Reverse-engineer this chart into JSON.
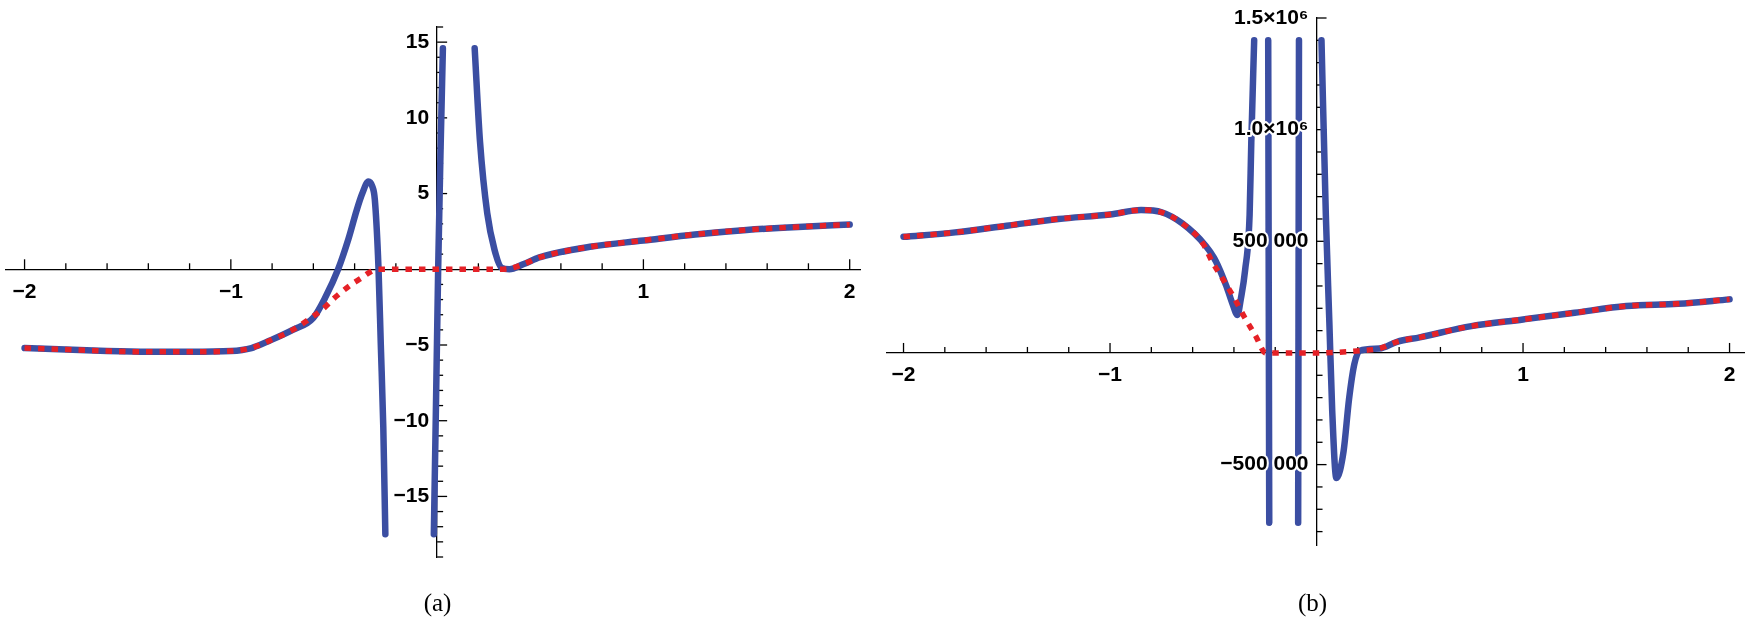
{
  "chart_data": [
    {
      "type": "line",
      "xlim": [
        -2.09,
        2.05
      ],
      "ylim": [
        -19,
        16
      ],
      "marker": "none",
      "xticks": [
        {
          "value": -2,
          "label": "−2"
        },
        {
          "value": -1.8,
          "label": null
        },
        {
          "value": -1.6,
          "label": null
        },
        {
          "value": -1.4,
          "label": null
        },
        {
          "value": -1.2,
          "label": null
        },
        {
          "value": -1,
          "label": "−1"
        },
        {
          "value": -0.8,
          "label": null
        },
        {
          "value": -0.6,
          "label": null
        },
        {
          "value": -0.4,
          "label": null
        },
        {
          "value": -0.2,
          "label": null
        },
        {
          "value": 0.2,
          "label": null
        },
        {
          "value": 0.4,
          "label": null
        },
        {
          "value": 0.6,
          "label": null
        },
        {
          "value": 0.8,
          "label": null
        },
        {
          "value": 1,
          "label": "1"
        },
        {
          "value": 1.2,
          "label": null
        },
        {
          "value": 1.4,
          "label": null
        },
        {
          "value": 1.6,
          "label": null
        },
        {
          "value": 1.8,
          "label": null
        },
        {
          "value": 2,
          "label": "2"
        }
      ],
      "yticks": [
        {
          "value": -19,
          "label": null
        },
        {
          "value": -18,
          "label": null
        },
        {
          "value": -17,
          "label": null
        },
        {
          "value": -16,
          "label": null
        },
        {
          "value": -15,
          "label": "−15"
        },
        {
          "value": -14,
          "label": null
        },
        {
          "value": -13,
          "label": null
        },
        {
          "value": -12,
          "label": null
        },
        {
          "value": -11,
          "label": null
        },
        {
          "value": -10,
          "label": "−10"
        },
        {
          "value": -9,
          "label": null
        },
        {
          "value": -8,
          "label": null
        },
        {
          "value": -7,
          "label": null
        },
        {
          "value": -6,
          "label": null
        },
        {
          "value": -5,
          "label": "−5"
        },
        {
          "value": -4,
          "label": null
        },
        {
          "value": -3,
          "label": null
        },
        {
          "value": -2,
          "label": null
        },
        {
          "value": -1,
          "label": null
        },
        {
          "value": 1,
          "label": null
        },
        {
          "value": 2,
          "label": null
        },
        {
          "value": 3,
          "label": null
        },
        {
          "value": 4,
          "label": null
        },
        5,
        {
          "value": 6,
          "label": null
        },
        {
          "value": 7,
          "label": null
        },
        {
          "value": 8,
          "label": null
        },
        {
          "value": 9,
          "label": null
        },
        10,
        {
          "value": 11,
          "label": null
        },
        {
          "value": 12,
          "label": null
        },
        {
          "value": 13,
          "label": null
        },
        {
          "value": 14,
          "label": null
        },
        15,
        {
          "value": 16,
          "label": null
        }
      ],
      "series": [
        {
          "color": "#3b4ea2",
          "line_style": "solid",
          "x": [
            -2,
            -1.8,
            -1.6,
            -1.4,
            -1.2,
            -1,
            -0.9,
            -0.81,
            -0.7,
            -0.6,
            -0.54,
            -0.48,
            -0.43,
            -0.39,
            -0.363,
            -0.333,
            -0.315,
            -0.302,
            -0.284,
            -0.273,
            -0.261,
            -0.251,
            -0.15,
            -0.016,
            -0.005,
            0.005,
            0.016,
            0.028,
            0.1,
            0.182,
            0.208,
            0.243,
            0.278,
            0.312,
            0.35,
            0.42,
            0.5,
            0.75,
            1,
            1.25,
            1.5,
            1.75,
            2
          ],
          "values": [
            -5.2,
            -5.3,
            -5.4,
            -5.45,
            -5.45,
            -5.4,
            -5.2,
            -4.7,
            -4,
            -3.2,
            -1.8,
            0,
            2,
            3.9,
            5,
            5.8,
            5.5,
            4.6,
            0,
            -5,
            -10.4,
            -17.5,
            null,
            -17.5,
            -8.5,
            0,
            7.5,
            14.6,
            null,
            14.6,
            8.4,
            3.7,
            1.3,
            0.1,
            0,
            0.35,
            0.8,
            1.5,
            1.9,
            2.3,
            2.6,
            2.8,
            2.95
          ]
        },
        {
          "color": "#e52127",
          "line_style": "dotted",
          "x": [
            -2,
            -1.8,
            -1.6,
            -1.4,
            -1.2,
            -1,
            -0.9,
            -0.81,
            -0.7,
            -0.6,
            -0.56,
            -0.49,
            -0.42,
            -0.37,
            -0.32,
            -0.284,
            0,
            0.3,
            0.35,
            0.42,
            0.5,
            0.75,
            1,
            1.25,
            1.5,
            1.75,
            2
          ],
          "values": [
            -5.2,
            -5.3,
            -5.4,
            -5.45,
            -5.45,
            -5.4,
            -5.2,
            -4.7,
            -4,
            -3.1,
            -2.7,
            -1.8,
            -1.05,
            -0.6,
            -0.15,
            0,
            0,
            0,
            0.05,
            0.35,
            0.8,
            1.5,
            1.9,
            2.3,
            2.6,
            2.8,
            2.95
          ]
        }
      ],
      "annotations": [
        "(a)"
      ]
    },
    {
      "type": "line",
      "xlim": [
        -2.08,
        2.07
      ],
      "ylim": [
        -860000,
        1500000
      ],
      "marker": "none",
      "xticks": [
        {
          "value": -2,
          "label": "−2"
        },
        {
          "value": -1.8,
          "label": null
        },
        {
          "value": -1.6,
          "label": null
        },
        {
          "value": -1.4,
          "label": null
        },
        {
          "value": -1.2,
          "label": null
        },
        {
          "value": -1,
          "label": "−1"
        },
        {
          "value": -0.8,
          "label": null
        },
        {
          "value": -0.6,
          "label": null
        },
        {
          "value": -0.4,
          "label": null
        },
        {
          "value": -0.2,
          "label": null
        },
        {
          "value": 0.2,
          "label": null
        },
        {
          "value": 0.4,
          "label": null
        },
        {
          "value": 0.6,
          "label": null
        },
        {
          "value": 0.8,
          "label": null
        },
        {
          "value": 1,
          "label": "1"
        },
        {
          "value": 1.2,
          "label": null
        },
        {
          "value": 1.4,
          "label": null
        },
        {
          "value": 1.6,
          "label": null
        },
        {
          "value": 1.8,
          "label": null
        },
        {
          "value": 2,
          "label": "2"
        }
      ],
      "yticks": [
        {
          "value": -800000,
          "label": null
        },
        {
          "value": -700000,
          "label": null
        },
        {
          "value": -600000,
          "label": null
        },
        {
          "value": -500000,
          "label": "−500 000"
        },
        {
          "value": -400000,
          "label": null
        },
        {
          "value": -300000,
          "label": null
        },
        {
          "value": -200000,
          "label": null
        },
        {
          "value": -100000,
          "label": null
        },
        {
          "value": 100000,
          "label": null
        },
        {
          "value": 200000,
          "label": null
        },
        {
          "value": 300000,
          "label": null
        },
        {
          "value": 400000,
          "label": null
        },
        {
          "value": 500000,
          "label": "500 000"
        },
        {
          "value": 600000,
          "label": null
        },
        {
          "value": 700000,
          "label": null
        },
        {
          "value": 800000,
          "label": null
        },
        {
          "value": 900000,
          "label": null
        },
        {
          "value": 1000000,
          "label": "1.0×10⁶"
        },
        {
          "value": 1100000,
          "label": null
        },
        {
          "value": 1200000,
          "label": null
        },
        {
          "value": 1300000,
          "label": null
        },
        {
          "value": 1400000,
          "label": null
        },
        {
          "value": 1500000,
          "label": "1.5×10⁶"
        }
      ],
      "series": [
        {
          "color": "#3b4ea2",
          "line_style": "solid",
          "x": [
            -2,
            -1.75,
            -1.5,
            -1.25,
            -1,
            -0.85,
            -0.75,
            -0.65,
            -0.537,
            -0.487,
            -0.437,
            -0.407,
            -0.383,
            -0.367,
            -0.346,
            -0.324,
            -0.316,
            -0.302,
            -0.27,
            -0.234,
            -0.229,
            -0.16,
            -0.089,
            -0.085,
            -0.03,
            0.024,
            0.045,
            0.062,
            0.076,
            0.096,
            0.131,
            0.157,
            0.183,
            0.209,
            0.304,
            0.39,
            0.5,
            0.75,
            1,
            1.25,
            1.5,
            1.75,
            2
          ],
          "values": [
            520000,
            540000,
            570000,
            600000,
            620000,
            640000,
            630000,
            580000,
            480000,
            410000,
            300000,
            220000,
            170000,
            240000,
            370000,
            620000,
            940000,
            1400000,
            null,
            1400000,
            -760000,
            null,
            -760000,
            1400000,
            null,
            1400000,
            620000,
            140000,
            -260000,
            -560000,
            -440000,
            -210000,
            -50000,
            10000,
            20000,
            50000,
            70000,
            120000,
            150000,
            180000,
            210000,
            220000,
            240000
          ]
        },
        {
          "color": "#e52127",
          "line_style": "dotted",
          "x": [
            -2,
            -1.75,
            -1.5,
            -1.25,
            -1,
            -0.85,
            -0.75,
            -0.65,
            -0.55,
            -0.506,
            -0.453,
            -0.401,
            -0.349,
            -0.297,
            -0.245,
            0,
            0.209,
            0.304,
            0.39,
            0.5,
            0.75,
            1,
            1.25,
            1.5,
            1.75,
            2
          ],
          "values": [
            520000,
            540000,
            570000,
            600000,
            620000,
            640000,
            630000,
            580000,
            490000,
            410000,
            330000,
            250000,
            160000,
            80000,
            0,
            0,
            10000,
            20000,
            50000,
            70000,
            120000,
            150000,
            180000,
            210000,
            220000,
            240000
          ]
        }
      ],
      "annotations": [
        "(b)"
      ]
    }
  ]
}
